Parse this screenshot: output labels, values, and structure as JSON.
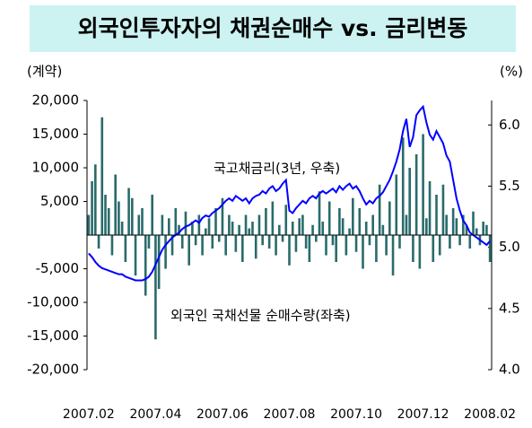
{
  "chart_data": {
    "type": "bar",
    "title": "외국인투자자의 채권순매수 vs. 금리변동",
    "y_unit": "(계약)",
    "y2_unit": "(%)",
    "categories": [
      "2007.02",
      null,
      null,
      null,
      null,
      null,
      null,
      null,
      null,
      null,
      null,
      null,
      null,
      null,
      null,
      null,
      null,
      null,
      null,
      null,
      "2007.04",
      null,
      null,
      null,
      null,
      null,
      null,
      null,
      null,
      null,
      null,
      null,
      null,
      null,
      null,
      null,
      null,
      null,
      null,
      null,
      "2007.06",
      null,
      null,
      null,
      null,
      null,
      null,
      null,
      null,
      null,
      null,
      null,
      null,
      null,
      null,
      null,
      null,
      null,
      null,
      null,
      "2007.08",
      null,
      null,
      null,
      null,
      null,
      null,
      null,
      null,
      null,
      null,
      null,
      null,
      null,
      null,
      null,
      null,
      null,
      null,
      null,
      "2007.10",
      null,
      null,
      null,
      null,
      null,
      null,
      null,
      null,
      null,
      null,
      null,
      null,
      null,
      null,
      null,
      null,
      null,
      null,
      null,
      "2007.12",
      null,
      null,
      null,
      null,
      null,
      null,
      null,
      null,
      null,
      null,
      null,
      null,
      null,
      null,
      null,
      null,
      null,
      null,
      null,
      "2008.02"
    ],
    "series": [
      {
        "name": "외국인 국채선물 순매수량(좌축)",
        "type": "bar",
        "color": "#2a6b6b",
        "values": [
          3000,
          8000,
          10500,
          -2000,
          17500,
          6000,
          4000,
          -3000,
          9000,
          5000,
          2000,
          -4000,
          7000,
          5500,
          -6000,
          3000,
          4000,
          -9000,
          -2000,
          6000,
          -15500,
          -8000,
          3000,
          -5000,
          2500,
          -3000,
          4000,
          1500,
          -2000,
          3500,
          -4500,
          2000,
          -1500,
          3000,
          -3000,
          1000,
          2500,
          -2000,
          4000,
          -1000,
          5500,
          -3000,
          3000,
          2000,
          -2500,
          1500,
          -4000,
          3000,
          1000,
          2000,
          -3500,
          3000,
          -1500,
          4000,
          -2000,
          5000,
          -3000,
          1500,
          -1000,
          4500,
          -4500,
          2000,
          -2500,
          2500,
          3000,
          -2000,
          -4000,
          1500,
          -1000,
          6500,
          2000,
          -3000,
          5000,
          -1500,
          -4000,
          4000,
          2500,
          -3000,
          1000,
          5500,
          -2500,
          4000,
          -5000,
          2000,
          -1500,
          3000,
          -4000,
          7500,
          1500,
          -3000,
          5000,
          -6000,
          9000,
          -2000,
          14500,
          3000,
          10000,
          -4000,
          12000,
          -5000,
          15000,
          2500,
          8000,
          -4000,
          6000,
          -3000,
          7500,
          3000,
          -2000,
          4000,
          2500,
          -1500,
          3000,
          1500,
          -2000,
          3500,
          1000,
          -1500,
          2000,
          1500,
          -4000
        ]
      },
      {
        "name": "국고채금리(3년, 우축)",
        "type": "line",
        "axis": "y2",
        "color": "#0000ff",
        "values": [
          4.95,
          4.92,
          4.88,
          4.85,
          4.83,
          4.82,
          4.81,
          4.8,
          4.79,
          4.78,
          4.78,
          4.76,
          4.75,
          4.74,
          4.73,
          4.73,
          4.73,
          4.74,
          4.76,
          4.8,
          4.86,
          4.92,
          4.98,
          5.02,
          5.05,
          5.08,
          5.1,
          5.12,
          5.15,
          5.17,
          5.18,
          5.2,
          5.22,
          5.2,
          5.24,
          5.26,
          5.25,
          5.28,
          5.3,
          5.32,
          5.35,
          5.38,
          5.4,
          5.38,
          5.42,
          5.4,
          5.38,
          5.4,
          5.36,
          5.4,
          5.42,
          5.43,
          5.46,
          5.44,
          5.48,
          5.5,
          5.46,
          5.48,
          5.52,
          5.55,
          5.3,
          5.28,
          5.32,
          5.35,
          5.38,
          5.36,
          5.4,
          5.42,
          5.4,
          5.44,
          5.46,
          5.44,
          5.46,
          5.48,
          5.45,
          5.5,
          5.47,
          5.5,
          5.52,
          5.48,
          5.5,
          5.46,
          5.4,
          5.35,
          5.38,
          5.36,
          5.4,
          5.42,
          5.45,
          5.5,
          5.55,
          5.62,
          5.7,
          5.8,
          5.95,
          6.05,
          5.82,
          5.9,
          6.08,
          6.12,
          6.15,
          6.02,
          5.92,
          5.88,
          5.95,
          5.9,
          5.85,
          5.75,
          5.7,
          5.55,
          5.4,
          5.3,
          5.22,
          5.18,
          5.12,
          5.1,
          5.08,
          5.06,
          5.04,
          5.02,
          5.05
        ]
      }
    ],
    "ylim": [
      -20000,
      20000
    ],
    "yticks": [
      {
        "value": 20000,
        "label": "20,000"
      },
      {
        "value": 15000,
        "label": "15,000"
      },
      {
        "value": 10000,
        "label": "10,000"
      },
      {
        "value": 5000,
        "label": "5,000"
      },
      {
        "value": -5000,
        "label": "-5,000"
      },
      {
        "value": -10000,
        "label": "-10,000"
      },
      {
        "value": -15000,
        "label": "-15,000"
      },
      {
        "value": -20000,
        "label": "-20,000"
      }
    ],
    "y2lim": [
      4.0,
      6.2
    ],
    "y2ticks": [
      {
        "value": 6.0,
        "label": "6.0"
      },
      5.5,
      {
        "value": 5.0,
        "label": "5.0"
      },
      4.5,
      {
        "value": 4.0,
        "label": "4.0"
      }
    ]
  }
}
